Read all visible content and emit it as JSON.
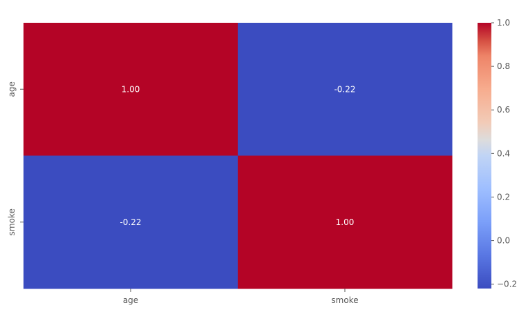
{
  "chart_data": {
    "type": "heatmap",
    "title": "",
    "xlabel": "",
    "ylabel": "",
    "x_categories": [
      "age",
      "smoke"
    ],
    "y_categories": [
      "age",
      "smoke"
    ],
    "values": [
      [
        1.0,
        -0.22
      ],
      [
        -0.22,
        1.0
      ]
    ],
    "cell_labels": [
      [
        "1.00",
        "-0.22"
      ],
      [
        "-0.22",
        "1.00"
      ]
    ],
    "colormap": "coolwarm",
    "colorbar": {
      "range": [
        -0.22,
        1.0
      ],
      "ticks": [
        -0.2,
        0.0,
        0.2,
        0.4,
        0.6,
        0.8,
        1.0
      ],
      "tick_labels": [
        "−0.2",
        "0.0",
        "0.2",
        "0.4",
        "0.6",
        "0.8",
        "1.0"
      ]
    },
    "colors": {
      "high": "#b40426",
      "low": "#3b4cc0",
      "annotation_text": "#ffffff",
      "axis_text": "#555555"
    }
  }
}
